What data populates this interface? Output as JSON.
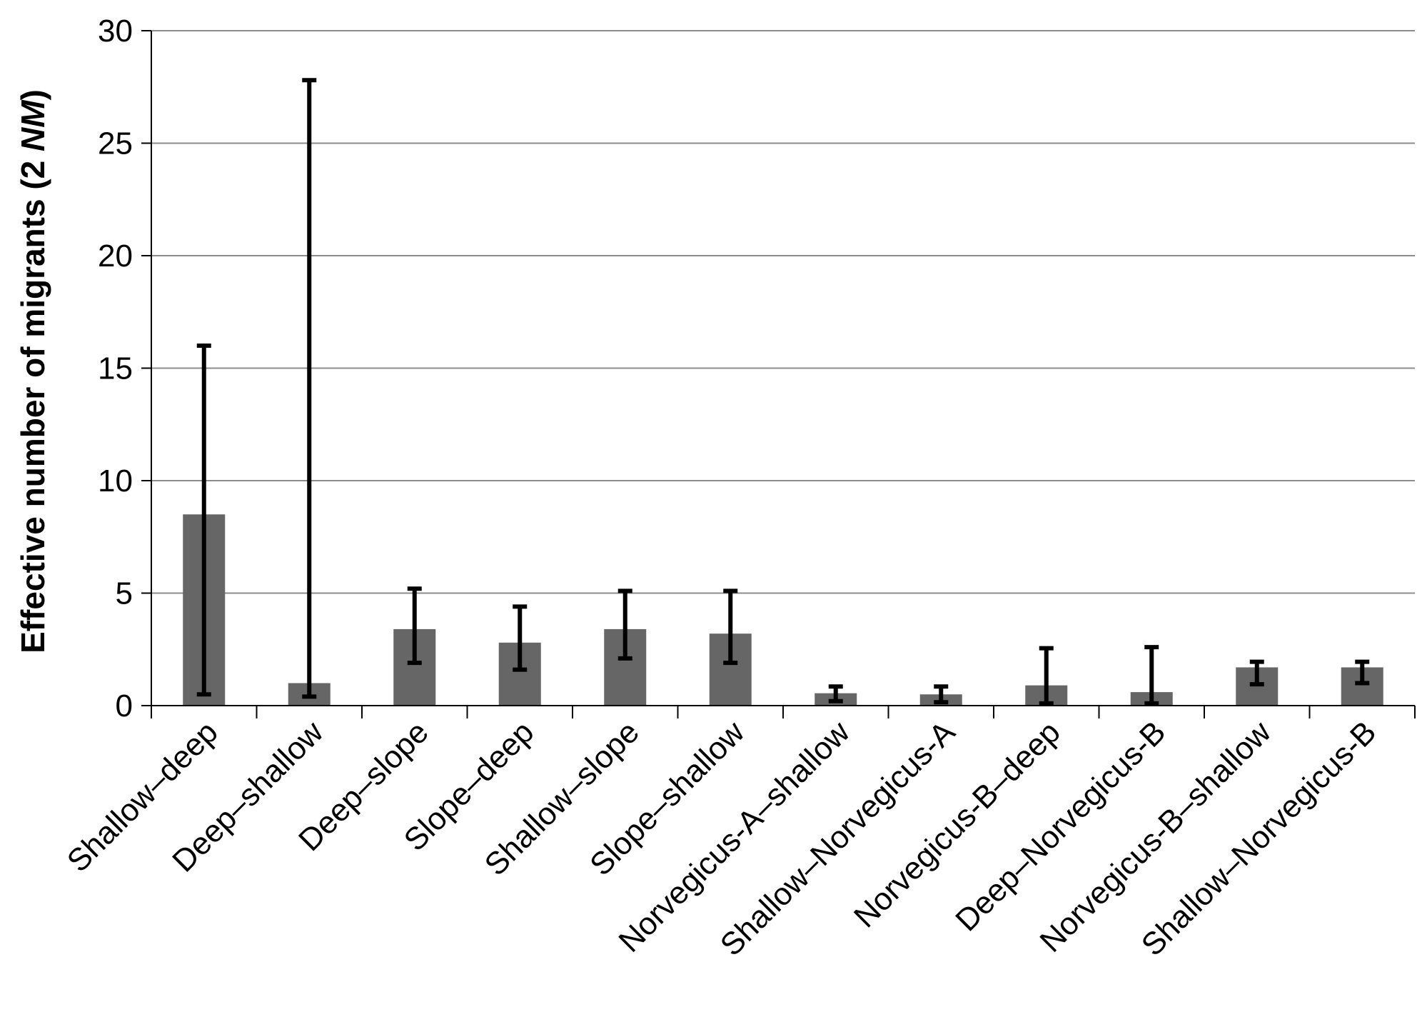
{
  "chart_data": {
    "type": "bar",
    "title": "",
    "xlabel": "",
    "ylabel_main": "Effective number of migrants (2 ",
    "ylabel_italic": "NM",
    "ylabel_close": ")",
    "ylim": [
      0,
      30
    ],
    "yticks": [
      0,
      5,
      10,
      15,
      20,
      25,
      30
    ],
    "ytick_labels": [
      "0",
      "5",
      "10",
      "15",
      "20",
      "25",
      "30"
    ],
    "grid": true,
    "bar_color": "#666666",
    "error_color": "#000000",
    "categories": [
      "Shallow–deep",
      "Deep–shallow",
      "Deep–slope",
      "Slope–deep",
      "Shallow–slope",
      "Slope–shallow",
      "Norvegicus-A–shallow",
      "Shallow–Norvegicus-A",
      "Norvegicus-B–deep",
      "Deep–Norvegicus-B",
      "Norvegicus-B–shallow",
      "Shallow–Norvegicus-B"
    ],
    "values": [
      8.5,
      1.0,
      3.4,
      2.8,
      3.4,
      3.2,
      0.55,
      0.5,
      0.9,
      0.6,
      1.7,
      1.7
    ],
    "error_low": [
      0.5,
      0.4,
      1.9,
      1.6,
      2.1,
      1.9,
      0.2,
      0.15,
      0.1,
      0.1,
      0.95,
      1.0
    ],
    "error_high": [
      16.0,
      27.8,
      5.2,
      4.4,
      5.1,
      5.1,
      0.85,
      0.85,
      2.55,
      2.6,
      1.95,
      1.95
    ]
  }
}
